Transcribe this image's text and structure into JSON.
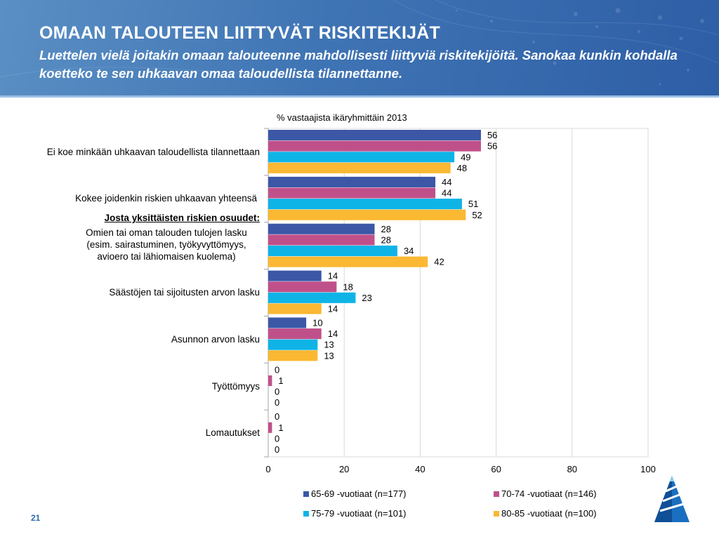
{
  "slide": {
    "title": "OMAAN TALOUTEEN LIITTYVÄT RISKITEKIJÄT",
    "subtitle": "Luettelen vielä joitakin omaan talouteenne mahdollisesti liittyviä riskitekijöitä. Sanokaa kunkin kohdalla koetteko te sen uhkaavan omaa taloudellista tilannettanne.",
    "page_number": "21",
    "header_color": "#3f74b4"
  },
  "chart_data": {
    "type": "bar",
    "orientation": "horizontal",
    "title": "% vastaajista ikäryhmittäin 2013",
    "subheading": "Josta yksittäisten riskien osuudet:",
    "categories": [
      "Ei koe minkään uhkaavan taloudellista tilannettaan",
      "Kokee joidenkin riskien uhkaavan yhteensä",
      "Omien tai oman talouden tulojen lasku (esim. sairastuminen, työkyvyttömyys, avioero tai lähiomaisen kuolema)",
      "Säästöjen tai sijoitusten arvon lasku",
      "Asunnon arvon lasku",
      "Työttömyys",
      "Lomautukset"
    ],
    "series": [
      {
        "name": "65-69 -vuotiaat (n=177)",
        "color": "#3b57a6",
        "values": [
          56,
          44,
          28,
          14,
          10,
          0,
          0
        ]
      },
      {
        "name": "70-74 -vuotiaat (n=146)",
        "color": "#c0508a",
        "values": [
          56,
          44,
          28,
          18,
          14,
          1,
          1
        ]
      },
      {
        "name": "75-79 -vuotiaat (n=101)",
        "color": "#0fb4e6",
        "values": [
          49,
          51,
          34,
          23,
          13,
          0,
          0
        ]
      },
      {
        "name": "80-85 -vuotiaat (n=100)",
        "color": "#fbb832",
        "values": [
          48,
          52,
          42,
          14,
          13,
          0,
          0
        ]
      }
    ],
    "xlim": [
      0,
      100
    ],
    "xticks": [
      0,
      20,
      40,
      60,
      80,
      100
    ],
    "grid": true,
    "legend_position": "bottom"
  }
}
